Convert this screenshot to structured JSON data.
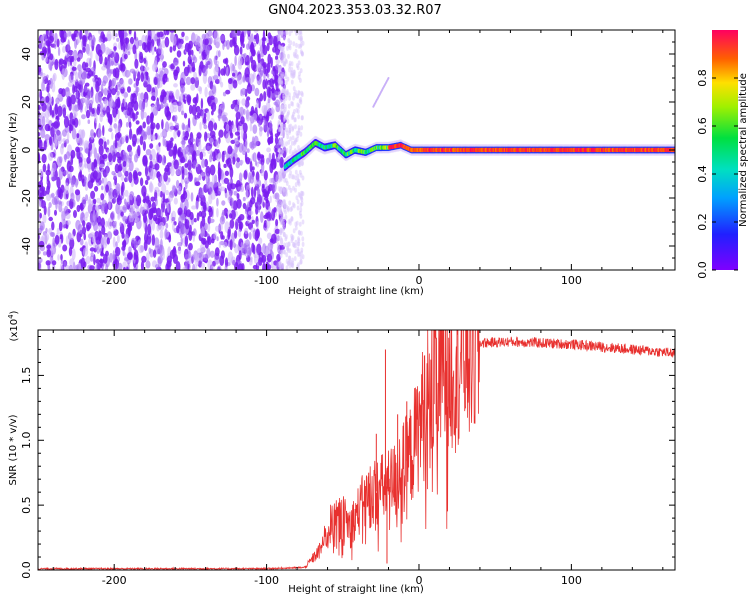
{
  "title": "GN04.2023.353.03.32.R07",
  "colors": {
    "snr_line": "#e8302e",
    "axis": "#000000",
    "background": "#ffffff"
  },
  "chart_data": [
    {
      "type": "heatmap",
      "xlabel": "Height of straight line (km)",
      "ylabel": "Frequency (Hz)",
      "xlim": [
        -250,
        168
      ],
      "ylim": [
        -50,
        50
      ],
      "x_ticks": [
        -200,
        -100,
        0,
        100
      ],
      "x_tick_labels": [
        "-200",
        "-100",
        "0",
        "100"
      ],
      "y_ticks": [
        -40,
        -20,
        0,
        20,
        40
      ],
      "y_tick_labels": [
        "-40",
        "-20",
        "0",
        "20",
        "40"
      ],
      "colorbar": {
        "label": "Normalized spectral amplitude",
        "range": [
          0,
          1
        ],
        "ticks": [
          0,
          0.2,
          0.4,
          0.6,
          0.8
        ],
        "tick_labels": [
          "0.0",
          "0.2",
          "0.4",
          "0.6",
          "0.8"
        ],
        "colormap": "rainbow"
      },
      "features": {
        "noise_region_x": [
          -250,
          -88
        ],
        "signal_center_freq_hz": 0,
        "signal_transition_x": [
          -88,
          -40
        ],
        "faint_curve": [
          [
            -30,
            18
          ],
          [
            -20,
            30
          ]
        ],
        "signal_track": [
          [
            -88,
            -7
          ],
          [
            -82,
            -4
          ],
          [
            -75,
            -1
          ],
          [
            -68,
            3
          ],
          [
            -62,
            1
          ],
          [
            -55,
            2
          ],
          [
            -48,
            -2
          ],
          [
            -42,
            0
          ],
          [
            -35,
            -1
          ],
          [
            -28,
            1
          ],
          [
            -20,
            1
          ],
          [
            -12,
            2
          ],
          [
            -5,
            0
          ],
          [
            10,
            0
          ],
          [
            40,
            0
          ],
          [
            80,
            0
          ],
          [
            120,
            0
          ],
          [
            168,
            0
          ]
        ]
      }
    },
    {
      "type": "line",
      "xlabel": "Height of straight line (km)",
      "ylabel": "SNR (10 * v/v)",
      "multiplier": "(x10",
      "multiplier_exp": "4",
      "multiplier_close": ")",
      "xlim": [
        -250,
        168
      ],
      "ylim": [
        0,
        1.85
      ],
      "x_ticks": [
        -200,
        -100,
        0,
        100
      ],
      "x_tick_labels": [
        "-200",
        "-100",
        "0",
        "100"
      ],
      "y_ticks": [
        0,
        0.5,
        1.0,
        1.5
      ],
      "y_tick_labels": [
        "0.0",
        "0.5",
        "1.0",
        "1.5"
      ],
      "envelope": {
        "x": [
          -250,
          -100,
          -75,
          -65,
          -58,
          -50,
          -45,
          -40,
          -35,
          -30,
          -25,
          -20,
          -15,
          -10,
          -5,
          0,
          5,
          10,
          20,
          30,
          40,
          60,
          80,
          100,
          120,
          140,
          160,
          168
        ],
        "y": [
          0.01,
          0.01,
          0.02,
          0.15,
          0.35,
          0.4,
          0.35,
          0.45,
          0.55,
          0.6,
          0.62,
          0.65,
          0.7,
          0.8,
          0.9,
          1.1,
          1.3,
          1.45,
          1.6,
          1.7,
          1.75,
          1.76,
          1.75,
          1.74,
          1.72,
          1.7,
          1.68,
          1.67
        ]
      },
      "spikes": [
        [
          -33,
          0.75
        ],
        [
          -28,
          1.05
        ],
        [
          -22,
          1.7
        ],
        [
          -21,
          0.05
        ],
        [
          -14,
          1.2
        ],
        [
          -8,
          1.3
        ]
      ]
    }
  ]
}
